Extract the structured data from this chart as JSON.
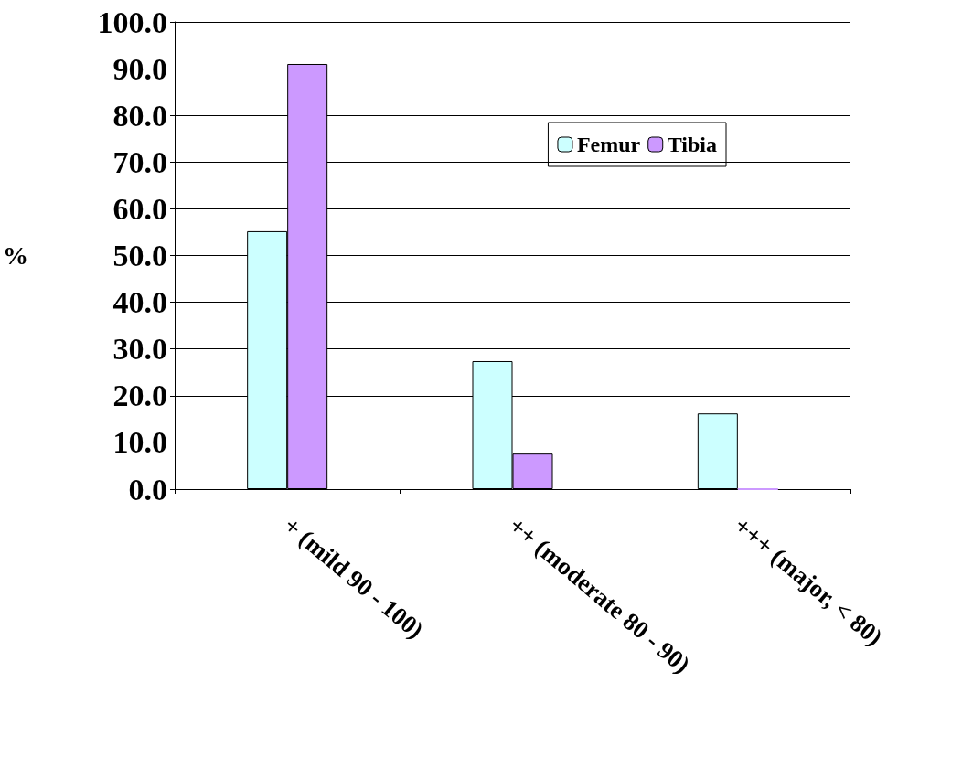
{
  "chart_data": {
    "type": "bar",
    "ylabel": "%",
    "categories": [
      "+ (mild 90 - 100)",
      "++ (moderate 80 - 90)",
      "+++ (major, < 80)"
    ],
    "series": [
      {
        "name": "Femur",
        "color": "#ccffff",
        "values": [
          55.2,
          27.4,
          16.2
        ]
      },
      {
        "name": "Tibia",
        "color": "#cc99ff",
        "values": [
          91.0,
          7.6,
          0.0
        ]
      }
    ],
    "ylim": [
      0,
      100
    ],
    "yticks": [
      {
        "value": 0,
        "label": "0.0"
      },
      {
        "value": 10,
        "label": "10.0"
      },
      {
        "value": 20,
        "label": "20.0"
      },
      {
        "value": 30,
        "label": "30.0"
      },
      {
        "value": 40,
        "label": "40.0"
      },
      {
        "value": 50,
        "label": "50.0"
      },
      {
        "value": 60,
        "label": "60.0"
      },
      {
        "value": 70,
        "label": "70.0"
      },
      {
        "value": 80,
        "label": "80.0"
      },
      {
        "value": 90,
        "label": "90.0"
      },
      {
        "value": 100,
        "label": "100.0"
      }
    ],
    "grid": "y",
    "legend": "top right"
  }
}
